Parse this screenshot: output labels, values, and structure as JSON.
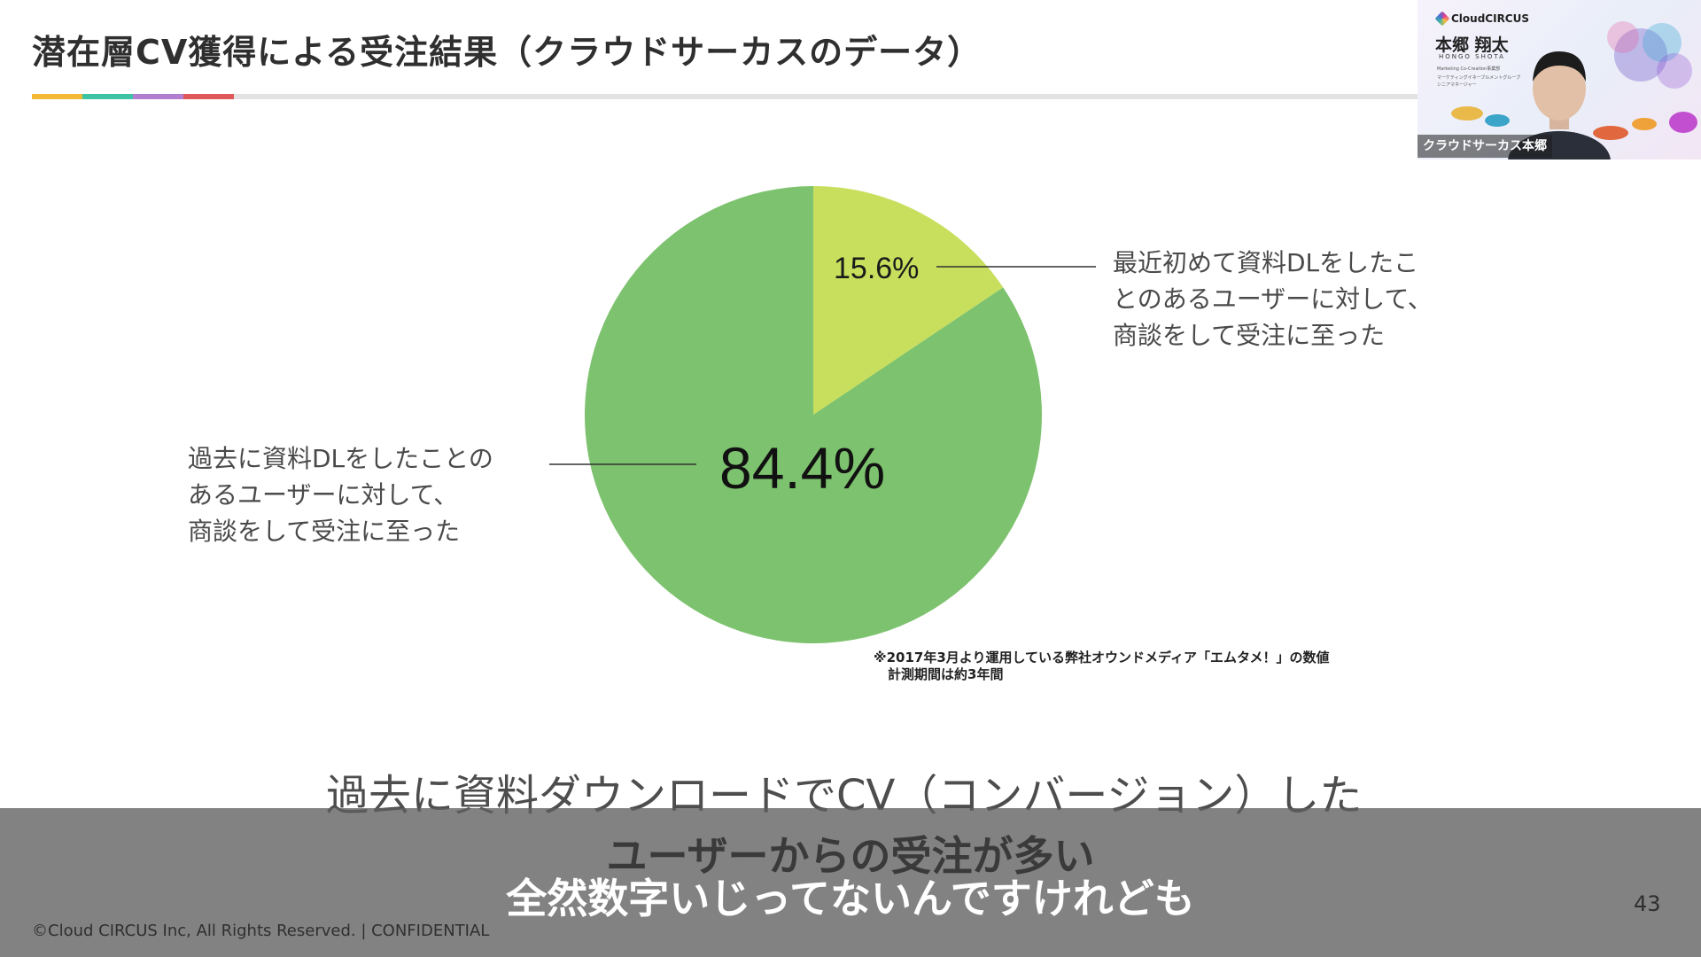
{
  "slide": {
    "title": "潜在層CV獲得による受注結果（クラウドサーカスのデータ）",
    "accent_colors": [
      "#f2b935",
      "#3fc3a5",
      "#b27ed0",
      "#e0575a"
    ],
    "footnote_line1": "※2017年3月より運用している弊社オウンドメディア「エムタメ！」の数値",
    "footnote_line2": "計測期間は約3年間",
    "headline": "過去に資料ダウンロードでCV（コンバージョン）した",
    "copyright": "©Cloud CIRCUS Inc, All Rights Reserved. | CONFIDENTIAL",
    "page_number": "43"
  },
  "chart_data": {
    "type": "pie",
    "title": "",
    "slices": [
      {
        "label": "最近初めて資料DLをしたことのあるユーザーに対して、商談をして受注に至った",
        "label_lines": [
          "最近初めて資料DLをしたこ",
          "とのあるユーザーに対して、",
          "商談をして受注に至った"
        ],
        "value": 15.6,
        "display": "15.6%",
        "color": "#c8df5d"
      },
      {
        "label": "過去に資料DLをしたことのあるユーザーに対して、商談をして受注に至った",
        "label_lines": [
          "過去に資料DLをしたことの",
          "あるユーザーに対して、",
          "商談をして受注に至った"
        ],
        "value": 84.4,
        "display": "84.4%",
        "color": "#7dc26e"
      }
    ]
  },
  "subtitles": {
    "line1": "ユーザーからの受注が多い",
    "line2": "全然数字いじってないんですけれども"
  },
  "webcam": {
    "brand": "CloudCIRCUS",
    "name_kanji": "本郷 翔太",
    "name_roman": "HONGO SHOTA",
    "role_1": "Marketing Co-Creation事業部",
    "role_2": "マーケティングイネーブルメントグループ",
    "role_3": "シニアマネージャー",
    "participant_label": "クラウドサーカス本郷"
  }
}
